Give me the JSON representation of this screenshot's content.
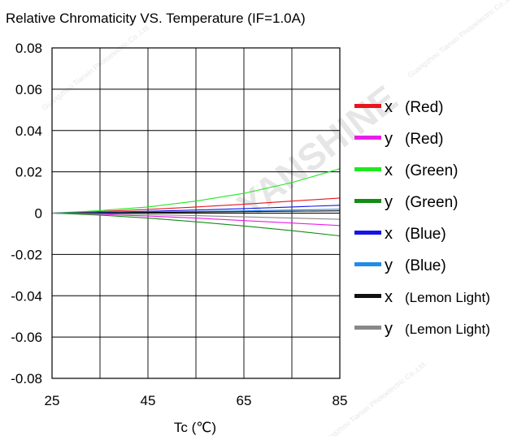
{
  "chart_data": {
    "type": "line",
    "title": "Relative Chromaticity VS. Temperature (IF=1.0A)",
    "xlabel": "Tc (℃)",
    "ylabel": "",
    "xlim": [
      25,
      85
    ],
    "ylim": [
      -0.08,
      0.08
    ],
    "x_ticks": [
      "25",
      "45",
      "65",
      "85"
    ],
    "y_ticks": [
      "0.08",
      "0.06",
      "0.04",
      "0.02",
      "0",
      "-0.02",
      "-0.04",
      "-0.06",
      "-0.08"
    ],
    "grid": true,
    "legend_position": "right",
    "x": [
      25,
      35,
      45,
      55,
      65,
      75,
      85
    ],
    "series": [
      {
        "name": "x  (Red)",
        "coord": "x",
        "label": "(Red)",
        "color": "#e8141e",
        "values": [
          0,
          0.0008,
          0.0018,
          0.003,
          0.0043,
          0.0058,
          0.0073
        ]
      },
      {
        "name": "y  (Red)",
        "coord": "y",
        "label": "(Red)",
        "color": "#e81ee8",
        "values": [
          0,
          -0.0006,
          -0.0014,
          -0.0024,
          -0.0036,
          -0.0048,
          -0.006
        ]
      },
      {
        "name": "x  (Green)",
        "coord": "x",
        "label": "(Green)",
        "color": "#1ee81e",
        "values": [
          0,
          0.0012,
          0.003,
          0.0058,
          0.0096,
          0.0148,
          0.0215
        ]
      },
      {
        "name": "y  (Green)",
        "coord": "y",
        "label": "(Green)",
        "color": "#148c14",
        "values": [
          0,
          -0.001,
          -0.0024,
          -0.0042,
          -0.0062,
          -0.0085,
          -0.011
        ]
      },
      {
        "name": "x  (Blue)",
        "coord": "x",
        "label": "(Blue)",
        "color": "#1414e8",
        "values": [
          0,
          0.0004,
          0.0009,
          0.0015,
          0.0022,
          0.003,
          0.0038
        ]
      },
      {
        "name": "y  (Blue)",
        "coord": "y",
        "label": "(Blue)",
        "color": "#1e8ce8",
        "values": [
          0,
          0.0002,
          0.0005,
          0.0008,
          0.0011,
          0.0015,
          0.0019
        ]
      },
      {
        "name": "x  (Lemon Light)",
        "coord": "x",
        "label": "(Lemon Light)",
        "color": "#111111",
        "values": [
          0,
          0.0001,
          0.0003,
          0.0005,
          0.0007,
          0.0009,
          0.0011
        ]
      },
      {
        "name": "y  (Lemon Light)",
        "coord": "y",
        "label": "(Lemon Light)",
        "color": "#888888",
        "values": [
          0,
          -0.0003,
          -0.0007,
          -0.0012,
          -0.0018,
          -0.0024,
          -0.003
        ]
      }
    ]
  },
  "watermark": {
    "text": "YANSHINE",
    "sub_text": "Guangzhou Tianxin Photoelectric Co.,Ltd.",
    "color": "#e6e6e6"
  }
}
